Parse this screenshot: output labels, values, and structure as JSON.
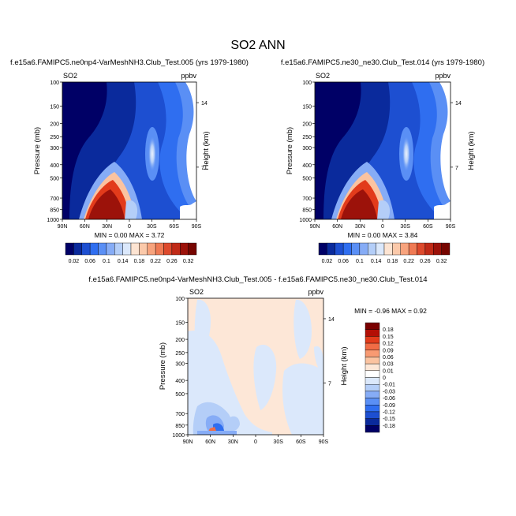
{
  "figure": {
    "title": "SO2 ANN"
  },
  "panels": [
    {
      "title": "f.e15a6.FAMIPC5.ne0np4-VarMeshNH3.Club_Test.005 (yrs 1979-1980)",
      "var_label": "SO2",
      "unit_label": "ppbv",
      "ylabel": "Pressure (mb)",
      "ylabel_right": "Height (km)",
      "stats": "MIN =  0.00  MAX =  3.72"
    },
    {
      "title": "f.e15a6.FAMIPC5.ne30_ne30.Club_Test.014 (yrs 1979-1980)",
      "var_label": "SO2",
      "unit_label": "ppbv",
      "ylabel": "Pressure (mb)",
      "ylabel_right": "Height (km)",
      "stats": "MIN =  0.00  MAX =  3.84"
    },
    {
      "title": "f.e15a6.FAMIPC5.ne0np4-VarMeshNH3.Club_Test.005 - f.e15a6.FAMIPC5.ne30_ne30.Club_Test.014",
      "var_label": "SO2",
      "unit_label": "ppbv",
      "ylabel": "Pressure (mb)",
      "ylabel_right": "Height (km)",
      "stats": "MIN = -0.96  MAX =  0.92"
    }
  ],
  "chart_data": [
    {
      "type": "heatmap",
      "title": "f.e15a6.FAMIPC5.ne0np4-VarMeshNH3.Club_Test.005 (yrs 1979-1980)",
      "xlabel": "",
      "ylabel": "Pressure (mb)",
      "y2label": "Height (km)",
      "x_ticks": [
        "90N",
        "60N",
        "30N",
        "0",
        "30S",
        "60S",
        "90S"
      ],
      "y_ticks": [
        "100",
        "150",
        "200",
        "250",
        "300",
        "400",
        "500",
        "700",
        "850",
        "1000"
      ],
      "y2_ticks": [
        "14",
        "7"
      ],
      "min": 0.0,
      "max": 3.72,
      "colorbar_levels": [
        0.02,
        0.04,
        0.06,
        0.08,
        0.1,
        0.12,
        0.14,
        0.16,
        0.18,
        0.2,
        0.22,
        0.24,
        0.26,
        0.28,
        0.3,
        0.32
      ],
      "colorbar_labels": [
        "0.02",
        "0.06",
        "0.1",
        "0.14",
        "0.18",
        "0.22",
        "0.26",
        "0.32"
      ]
    },
    {
      "type": "heatmap",
      "title": "f.e15a6.FAMIPC5.ne30_ne30.Club_Test.014 (yrs 1979-1980)",
      "xlabel": "",
      "ylabel": "Pressure (mb)",
      "y2label": "Height (km)",
      "x_ticks": [
        "90N",
        "60N",
        "30N",
        "0",
        "30S",
        "60S",
        "90S"
      ],
      "y_ticks": [
        "100",
        "150",
        "200",
        "250",
        "300",
        "400",
        "500",
        "700",
        "850",
        "1000"
      ],
      "y2_ticks": [
        "14",
        "7"
      ],
      "min": 0.0,
      "max": 3.84,
      "colorbar_levels": [
        0.02,
        0.04,
        0.06,
        0.08,
        0.1,
        0.12,
        0.14,
        0.16,
        0.18,
        0.2,
        0.22,
        0.24,
        0.26,
        0.28,
        0.3,
        0.32
      ],
      "colorbar_labels": [
        "0.02",
        "0.06",
        "0.1",
        "0.14",
        "0.18",
        "0.22",
        "0.26",
        "0.32"
      ]
    },
    {
      "type": "heatmap",
      "title": "f.e15a6.FAMIPC5.ne0np4-VarMeshNH3.Club_Test.005 - f.e15a6.FAMIPC5.ne30_ne30.Club_Test.014",
      "xlabel": "",
      "ylabel": "Pressure (mb)",
      "y2label": "Height (km)",
      "x_ticks": [
        "90N",
        "60N",
        "30N",
        "0",
        "30S",
        "60S",
        "90S"
      ],
      "y_ticks": [
        "100",
        "150",
        "200",
        "250",
        "300",
        "400",
        "500",
        "700",
        "850",
        "1000"
      ],
      "y2_ticks": [
        "14",
        "7"
      ],
      "min": -0.96,
      "max": 0.92,
      "colorbar_levels": [
        0.18,
        0.15,
        0.12,
        0.09,
        0.06,
        0.03,
        0.01,
        0,
        -0.01,
        -0.03,
        -0.06,
        -0.09,
        -0.12,
        -0.15,
        -0.18
      ],
      "colorbar_labels": [
        "0.18",
        "0.15",
        "0.12",
        "0.09",
        "0.06",
        "0.03",
        "0.01",
        "0",
        "-0.01",
        "-0.03",
        "-0.06",
        "-0.09",
        "-0.12",
        "-0.15",
        "-0.18"
      ]
    }
  ],
  "colors": {
    "seq_scale": [
      "#000066",
      "#0a2a9c",
      "#1d4fd1",
      "#2f6ef0",
      "#5a8ff5",
      "#86acf6",
      "#b4cef8",
      "#dbe8fb",
      "#fde4d2",
      "#fbc9aa",
      "#f7a37d",
      "#ef7a54",
      "#dd4a2d",
      "#c02a17",
      "#9c120a",
      "#760500"
    ],
    "diff_scale": [
      "#7a0000",
      "#b30f06",
      "#e23b1b",
      "#f16c45",
      "#f89a72",
      "#fbc3a0",
      "#fde7d7",
      "#ffffff",
      "#dbe8fb",
      "#b4cef8",
      "#86acf6",
      "#5a8ff5",
      "#2f6ef0",
      "#1d4fd1",
      "#0a2a9c",
      "#000066"
    ]
  }
}
